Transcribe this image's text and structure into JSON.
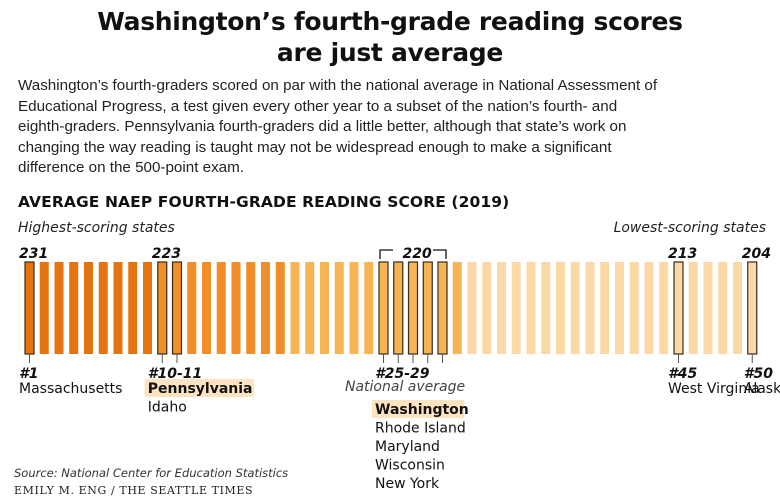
{
  "headline": [
    "Washington’s fourth-grade reading scores",
    "are just average"
  ],
  "dek": [
    "Washington’s fourth-graders scored on par with the national average in National Assessment of",
    "Educational Progress, a test given every other year to a subset of the nation’s fourth- and",
    "eighth-graders. Pennsylvania fourth-graders did a little better, although that state’s work on",
    "changing the way reading is taught may not be widespread enough to make a significant",
    "difference on the 500-point exam."
  ],
  "source": "Source: National Center for Education Statistics",
  "credit": "EMILY M. ENG / THE SEATTLE TIMES",
  "colors": {
    "top": "#e3740f",
    "mid_orange": "#f08e28",
    "amber": "#f6b454",
    "light": "#fbd9a6",
    "outline": "#3a2a1a",
    "highlight": "#fde3c0"
  },
  "chart_data": {
    "type": "bar",
    "title": "AVERAGE NAEP FOURTH-GRADE READING SCORE (2019)",
    "left_note": "Highest-scoring states",
    "right_note": "Lowest-scoring states",
    "bar_count": 50,
    "score_range": [
      204,
      231
    ],
    "value_labels": [
      {
        "rank": 1,
        "text": "231"
      },
      {
        "rank": 10,
        "text": "223"
      },
      {
        "rank": 27,
        "text": "220"
      },
      {
        "rank": 45,
        "text": "213"
      },
      {
        "rank": 50,
        "text": "204"
      }
    ],
    "rank_groups": [
      {
        "rank_text": "#1",
        "first_rank": 1,
        "last_rank": 1,
        "states": [
          "Massachusetts"
        ],
        "highlight": null
      },
      {
        "rank_text": "#10-11",
        "first_rank": 10,
        "last_rank": 11,
        "states": [
          "Pennsylvania",
          "Idaho"
        ],
        "highlight": "Pennsylvania"
      },
      {
        "rank_text": "#25-29",
        "first_rank": 25,
        "last_rank": 29,
        "note": "National average",
        "states": [
          "Washington",
          "Rhode Island",
          "Maryland",
          "Wisconsin",
          "New York"
        ],
        "highlight": "Washington"
      },
      {
        "rank_text": "#45",
        "first_rank": 45,
        "last_rank": 45,
        "states": [
          "West Virginia"
        ],
        "highlight": null
      },
      {
        "rank_text": "#50",
        "first_rank": 50,
        "last_rank": 50,
        "states": [
          "Alaska"
        ],
        "highlight": null
      }
    ],
    "outlined_ranks": [
      1,
      10,
      11,
      25,
      26,
      27,
      28,
      29,
      45,
      50
    ]
  }
}
